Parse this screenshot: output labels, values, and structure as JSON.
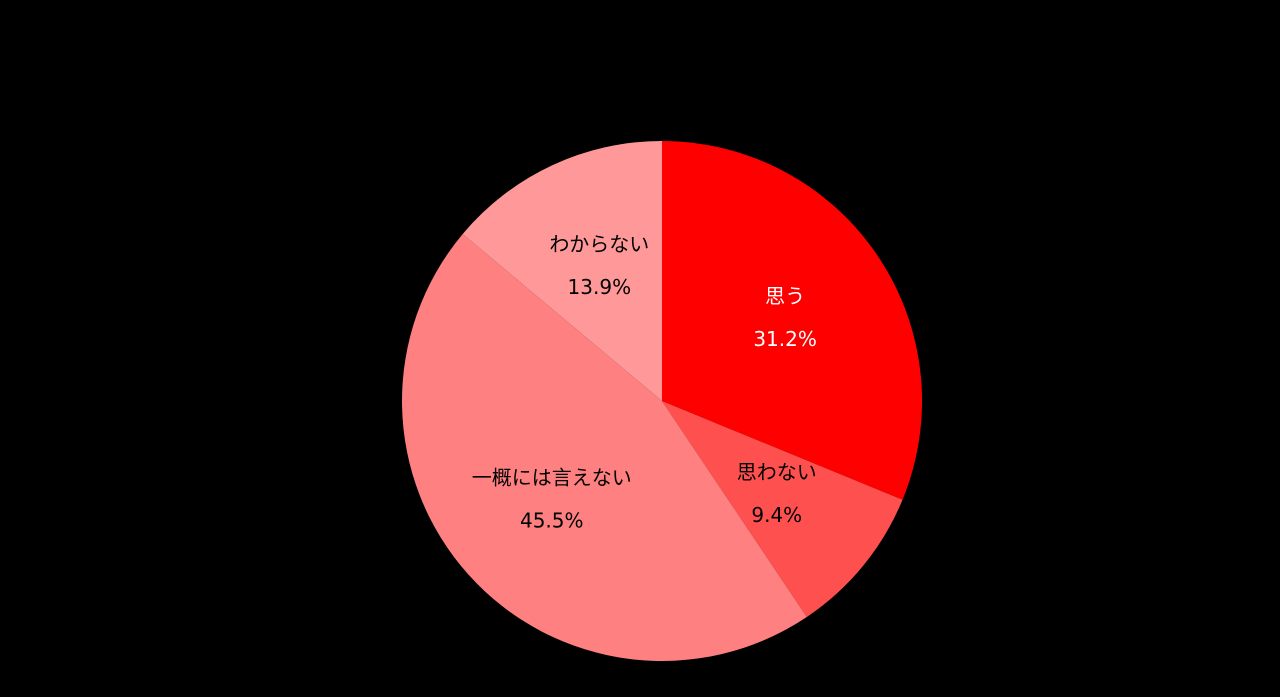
{
  "chart_data": {
    "type": "pie",
    "categories": [
      "思う",
      "思わない",
      "一概には言えない",
      "わからない"
    ],
    "values": [
      31.2,
      9.4,
      45.5,
      13.9
    ],
    "value_labels": [
      "31.2%",
      "9.4%",
      "45.5%",
      "13.9%"
    ],
    "colors": [
      "#ff0000",
      "#ff5050",
      "#ff8080",
      "#ff9999"
    ],
    "label_colors": [
      "#ffffff",
      "#000000",
      "#000000",
      "#000000"
    ]
  }
}
